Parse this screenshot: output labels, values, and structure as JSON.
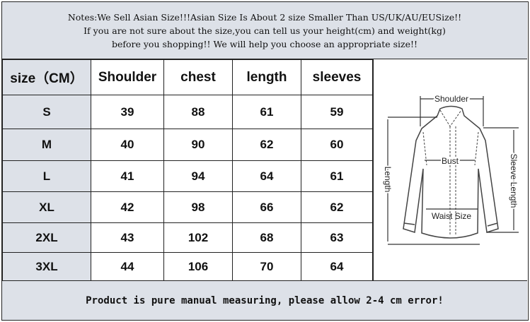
{
  "notes": [
    "Notes:We Sell Asian Size!!!Asian Size Is About 2 size Smaller Than US/UK/AU/EUSize!!",
    "If you are not sure about the size,you can tell us your height(cm) and weight(kg)",
    "before you shopping!! We will help you choose an appropriate size!!"
  ],
  "table": {
    "headers": [
      "size（CM）",
      "Shoulder",
      "chest",
      "length",
      "sleeves"
    ],
    "rows": [
      [
        "S",
        "39",
        "88",
        "61",
        "59"
      ],
      [
        "M",
        "40",
        "90",
        "62",
        "60"
      ],
      [
        "L",
        "41",
        "94",
        "64",
        "61"
      ],
      [
        "XL",
        "42",
        "98",
        "66",
        "62"
      ],
      [
        "2XL",
        "43",
        "102",
        "68",
        "63"
      ],
      [
        "3XL",
        "44",
        "106",
        "70",
        "64"
      ]
    ]
  },
  "diagram": {
    "shoulder": "Shoulder",
    "bust": "Bust",
    "waist": "Waist Size",
    "length": "Length",
    "sleeve": "Sleeve Length"
  },
  "footer": "Product is pure manual measuring, please allow 2-4 cm error!",
  "colors": {
    "band": "#dde1e8",
    "border": "#222222"
  }
}
